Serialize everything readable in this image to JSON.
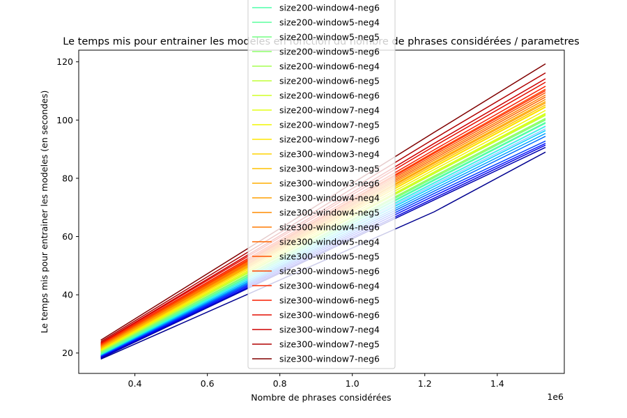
{
  "chart_data": {
    "type": "line",
    "title": "Le temps mis pour entrainer les modeles en fonction du nombre de phrases considérées / parametres",
    "xlabel": "Nombre de phrases considérées",
    "ylabel": "Le temps mis pour entrainer les modeles (en secondes)",
    "x_offset_label": "1e6",
    "xlim": [
      0.245,
      1.585
    ],
    "ylim": [
      13,
      124
    ],
    "x_ticks": [
      0.4,
      0.6,
      0.8,
      1.0,
      1.2,
      1.4
    ],
    "x_tick_labels": [
      "0.4",
      "0.6",
      "0.8",
      "1.0",
      "1.2",
      "1.4"
    ],
    "y_ticks": [
      20,
      40,
      60,
      80,
      100,
      120
    ],
    "y_tick_labels": [
      "20",
      "40",
      "60",
      "80",
      "100",
      "120"
    ],
    "x": [
      0.306,
      1.226,
      1.533
    ],
    "grid": false,
    "legend_position": "upper center",
    "series": [
      {
        "name": "size200-window4-neg6",
        "color": "#4dffaa",
        "values": [
          19.6,
          79.3,
          98.9
        ]
      },
      {
        "name": "size200-window5-neg4",
        "color": "#5aff9d",
        "values": [
          19.7,
          79.6,
          99.2
        ]
      },
      {
        "name": "size200-window5-neg5",
        "color": "#74ff83",
        "values": [
          20.0,
          80.2,
          100.0
        ]
      },
      {
        "name": "size200-window5-neg6",
        "color": "#8dff6a",
        "values": [
          20.2,
          80.8,
          100.6
        ]
      },
      {
        "name": "size200-window6-neg4",
        "color": "#a6ff50",
        "values": [
          20.3,
          80.6,
          100.4
        ]
      },
      {
        "name": "size200-window6-neg5",
        "color": "#bfff37",
        "values": [
          20.5,
          81.6,
          101.6
        ]
      },
      {
        "name": "size200-window6-neg6",
        "color": "#d1ff26",
        "values": [
          20.7,
          82.2,
          102.3
        ]
      },
      {
        "name": "size200-window7-neg4",
        "color": "#e4ff13",
        "values": [
          20.6,
          81.9,
          102.0
        ]
      },
      {
        "name": "size200-window7-neg5",
        "color": "#f1f500",
        "values": [
          20.9,
          83.0,
          103.3
        ]
      },
      {
        "name": "size200-window7-neg6",
        "color": "#ffe600",
        "values": [
          21.1,
          84.0,
          104.6
        ]
      },
      {
        "name": "size300-window3-neg4",
        "color": "#ffd300",
        "values": [
          21.2,
          83.8,
          104.4
        ]
      },
      {
        "name": "size300-window3-neg5",
        "color": "#ffc100",
        "values": [
          21.5,
          84.6,
          105.2
        ]
      },
      {
        "name": "size300-window3-neg6",
        "color": "#ffae00",
        "values": [
          21.8,
          85.6,
          106.4
        ]
      },
      {
        "name": "size300-window4-neg4",
        "color": "#ff9f00",
        "values": [
          21.7,
          85.2,
          105.9
        ]
      },
      {
        "name": "size300-window4-neg5",
        "color": "#ff8c00",
        "values": [
          22.0,
          86.2,
          107.1
        ]
      },
      {
        "name": "size300-window4-neg6",
        "color": "#ff7a00",
        "values": [
          22.3,
          87.4,
          108.6
        ]
      },
      {
        "name": "size300-window5-neg4",
        "color": "#ff6700",
        "values": [
          22.2,
          86.8,
          107.9
        ]
      },
      {
        "name": "size300-window5-neg5",
        "color": "#ff5500",
        "values": [
          22.5,
          88.0,
          109.4
        ]
      },
      {
        "name": "size300-window5-neg6",
        "color": "#ff4200",
        "values": [
          22.8,
          89.0,
          110.6
        ]
      },
      {
        "name": "size300-window6-neg4",
        "color": "#ff2f00",
        "values": [
          22.7,
          88.6,
          110.1
        ]
      },
      {
        "name": "size300-window6-neg5",
        "color": "#f81d00",
        "values": [
          23.0,
          89.8,
          111.6
        ]
      },
      {
        "name": "size300-window6-neg6",
        "color": "#e40e00",
        "values": [
          23.3,
          91.0,
          113.0
        ]
      },
      {
        "name": "size300-window7-neg4",
        "color": "#ce0000",
        "values": [
          23.5,
          92.0,
          114.2
        ]
      },
      {
        "name": "size300-window7-neg5",
        "color": "#b10000",
        "values": [
          23.9,
          93.6,
          116.2
        ]
      },
      {
        "name": "size300-window7-neg6",
        "color": "#800000",
        "values": [
          24.4,
          95.8,
          119.3
        ]
      },
      {
        "color": "#00008f",
        "values": [
          17.9,
          68.5,
          89.0
        ]
      },
      {
        "color": "#0000b0",
        "values": [
          18.2,
          72.6,
          90.6
        ]
      },
      {
        "color": "#0000e0",
        "values": [
          18.4,
          73.2,
          91.4
        ]
      },
      {
        "color": "#0010ff",
        "values": [
          18.6,
          74.0,
          92.0
        ]
      },
      {
        "color": "#0040ff",
        "values": [
          18.8,
          74.8,
          92.8
        ]
      },
      {
        "color": "#0070ff",
        "values": [
          18.9,
          75.6,
          94.4
        ]
      },
      {
        "color": "#00a0ff",
        "values": [
          19.0,
          76.4,
          95.4
        ]
      },
      {
        "color": "#00d0ff",
        "values": [
          19.2,
          77.2,
          96.4
        ]
      },
      {
        "color": "#20ffdf",
        "values": [
          19.4,
          78.4,
          97.8
        ]
      },
      {
        "color": "#8fc8ff",
        "values": [
          19.3,
          77.8,
          97.0
        ]
      },
      {
        "color": "#c8c8ff",
        "values": [
          19.5,
          78.6,
          98.0
        ]
      }
    ]
  }
}
